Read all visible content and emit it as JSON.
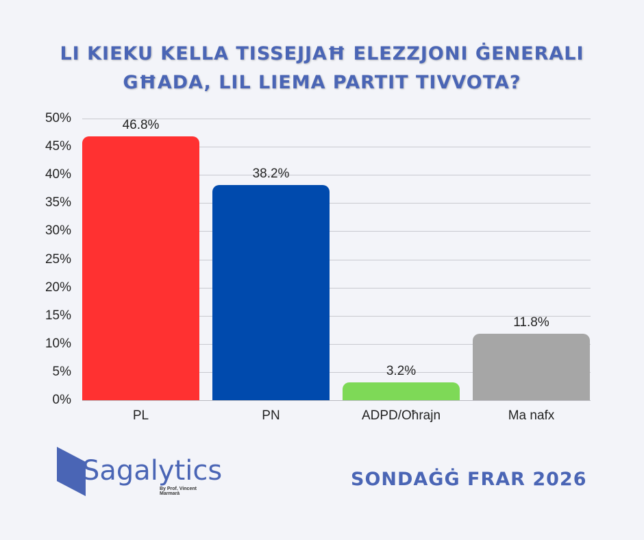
{
  "title": {
    "line1": "LI KIEKU KELLA TISSEJJAĦ ELEZZJONI ĠENERALI",
    "line2": "GĦADA, LIL LIEMA PARTIT TIVVOTA?"
  },
  "chart_data": {
    "type": "bar",
    "title": "LI KIEKU KELLA TISSEJJAĦ ELEZZJONI ĠENERALI GĦADA, LIL LIEMA PARTIT TIVVOTA?",
    "categories": [
      "PL",
      "PN",
      "ADPD/Oħrajn",
      "Ma nafx"
    ],
    "values": [
      46.8,
      38.2,
      3.2,
      11.8
    ],
    "value_labels": [
      "46.8%",
      "38.2%",
      "3.2%",
      "11.8%"
    ],
    "colors": [
      "#ff3131",
      "#004aad",
      "#7ed957",
      "#a6a6a6"
    ],
    "xlabel": "",
    "ylabel": "",
    "ylim": [
      0,
      50
    ],
    "yticks": [
      "0%",
      "5%",
      "10%",
      "15%",
      "20%",
      "25%",
      "30%",
      "35%",
      "40%",
      "45%",
      "50%"
    ],
    "grid": true,
    "legend": "none"
  },
  "logo": {
    "name": "Sagalytics",
    "subtitle": "By Prof. Vincent Marmarà"
  },
  "footer": {
    "label": "SONDAĠĠ FRAR 2026"
  },
  "colors": {
    "background": "#f3f4f9",
    "accent": "#4a65b5"
  }
}
